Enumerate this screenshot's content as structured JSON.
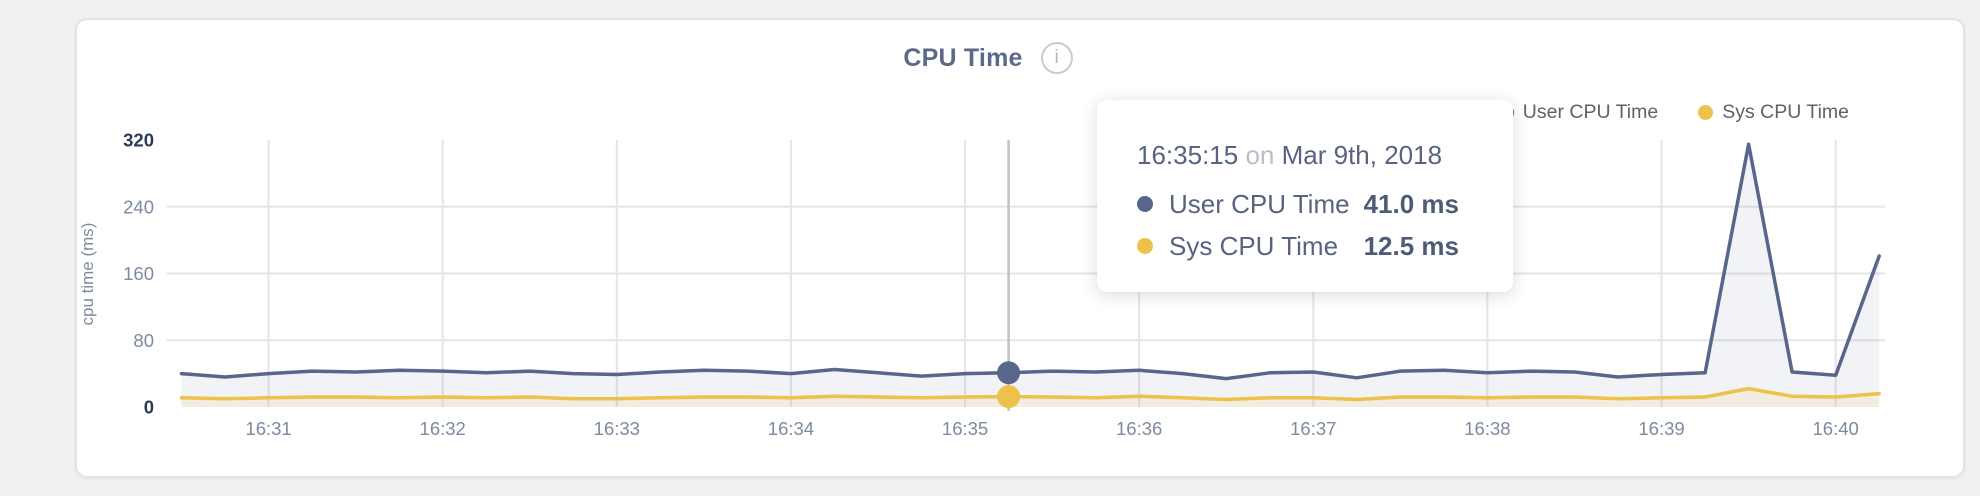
{
  "header": {
    "title": "CPU Time",
    "info_icon_glyph": "i"
  },
  "colors": {
    "page_bg": "#f1f1f2",
    "card_bg": "#ffffff",
    "card_border": "#e3e3e5",
    "accent_user": "#58668c",
    "accent_sys": "#ecc24a",
    "grid": "#e5e5e7",
    "tick_light": "#7d8aa0",
    "tick_dark": "#2c3a56",
    "title_text": "#5b6a88",
    "legend_text": "#5e6368",
    "tooltip_text": "#57637f",
    "tooltip_muted": "#b9bec7",
    "hover_line": "#c2c2c2"
  },
  "tooltip": {
    "time": "16:35:15",
    "preposition": "on",
    "date": "Mar 9th, 2018",
    "rows": [
      {
        "label": "User CPU Time",
        "value": "41.0 ms",
        "color": "#58668c"
      },
      {
        "label": "Sys CPU Time",
        "value": "12.5 ms",
        "color": "#ecc24a"
      }
    ]
  },
  "chart_data": {
    "type": "area",
    "title": "CPU Time",
    "xlabel": "",
    "ylabel": "cpu time (ms)",
    "ylim": [
      0,
      320
    ],
    "y_ticks": [
      0,
      80,
      160,
      240,
      320
    ],
    "x_tick_labels": [
      "16:31",
      "16:32",
      "16:33",
      "16:34",
      "16:35",
      "16:36",
      "16:37",
      "16:38",
      "16:39",
      "16:40"
    ],
    "x_range": [
      "16:30:25",
      "16:40:17"
    ],
    "grid": true,
    "legend_position": "top-right",
    "x": [
      "16:30:30",
      "16:30:45",
      "16:31:00",
      "16:31:15",
      "16:31:30",
      "16:31:45",
      "16:32:00",
      "16:32:15",
      "16:32:30",
      "16:32:45",
      "16:33:00",
      "16:33:15",
      "16:33:30",
      "16:33:45",
      "16:34:00",
      "16:34:15",
      "16:34:30",
      "16:34:45",
      "16:35:00",
      "16:35:15",
      "16:35:30",
      "16:35:45",
      "16:36:00",
      "16:36:15",
      "16:36:30",
      "16:36:45",
      "16:37:00",
      "16:37:15",
      "16:37:30",
      "16:37:45",
      "16:38:00",
      "16:38:15",
      "16:38:30",
      "16:38:45",
      "16:39:00",
      "16:39:15",
      "16:39:30",
      "16:39:45",
      "16:40:00",
      "16:40:15"
    ],
    "series": [
      {
        "name": "User CPU Time",
        "color": "#58668c",
        "fill": "rgba(88,102,140,0.08)",
        "values": [
          40,
          36,
          40,
          43,
          42,
          44,
          43,
          41,
          43,
          40,
          39,
          42,
          44,
          43,
          40,
          45,
          41,
          37,
          40,
          41,
          43,
          42,
          44,
          40,
          34,
          41,
          42,
          35,
          43,
          44,
          41,
          43,
          42,
          36,
          39,
          41,
          315,
          42,
          38,
          181
        ]
      },
      {
        "name": "Sys CPU Time",
        "color": "#ecc24a",
        "fill": "rgba(236,194,74,0.12)",
        "values": [
          11,
          10,
          11,
          12,
          12,
          11,
          12,
          11,
          12,
          10,
          10,
          11,
          12,
          12,
          11,
          13,
          12,
          11,
          12,
          12.5,
          12,
          11,
          13,
          11,
          9,
          11,
          11,
          9,
          12,
          12,
          11,
          12,
          12,
          10,
          11,
          12,
          22,
          13,
          12,
          16
        ]
      }
    ],
    "hover": {
      "index": 19,
      "time": "16:35:15"
    }
  }
}
